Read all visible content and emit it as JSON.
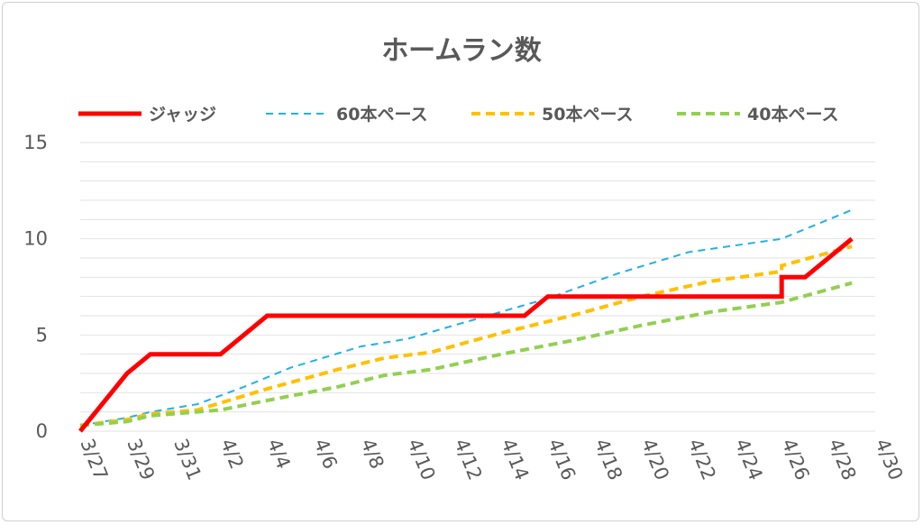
{
  "chart_data": {
    "type": "line",
    "title": "ホームラン数",
    "xlabel": "",
    "ylabel": "",
    "ylim": [
      0,
      15
    ],
    "yticks": [
      "0",
      "5",
      "10",
      "15"
    ],
    "grid": true,
    "legend_position": "top",
    "xticks": [
      "3/27",
      "3/29",
      "3/31",
      "4/2",
      "4/4",
      "4/6",
      "4/8",
      "4/10",
      "4/12",
      "4/14",
      "4/16",
      "4/18",
      "4/20",
      "4/22",
      "4/24",
      "4/26",
      "4/28",
      "4/30"
    ],
    "x_day_start": "3/27",
    "series": [
      {
        "name": "ジャッジ",
        "color": "#ff0000",
        "style": "solid-thick",
        "points": [
          [
            0,
            0
          ],
          [
            2,
            3
          ],
          [
            3,
            4
          ],
          [
            6,
            4
          ],
          [
            8,
            6
          ],
          [
            19,
            6
          ],
          [
            20,
            7
          ],
          [
            30,
            7
          ],
          [
            30,
            8
          ],
          [
            31,
            8
          ],
          [
            33,
            10
          ]
        ]
      },
      {
        "name": "60本ペース",
        "color": "#1fb2e5",
        "style": "dashed-thin",
        "points": [
          [
            0,
            0.3
          ],
          [
            2,
            0.7
          ],
          [
            3,
            1.0
          ],
          [
            5,
            1.4
          ],
          [
            7,
            2.3
          ],
          [
            9,
            3.3
          ],
          [
            12,
            4.4
          ],
          [
            14,
            4.8
          ],
          [
            18,
            6.2
          ],
          [
            20,
            6.9
          ],
          [
            23,
            8.2
          ],
          [
            26,
            9.3
          ],
          [
            30,
            10.0
          ],
          [
            33,
            11.5
          ]
        ]
      },
      {
        "name": "50本ペース",
        "color": "#ffc000",
        "style": "dashed-thick",
        "points": [
          [
            0,
            0.3
          ],
          [
            2,
            0.6
          ],
          [
            3,
            0.9
          ],
          [
            5,
            1.1
          ],
          [
            8,
            2.2
          ],
          [
            11,
            3.2
          ],
          [
            13,
            3.8
          ],
          [
            15,
            4.1
          ],
          [
            18,
            5.1
          ],
          [
            21,
            6.0
          ],
          [
            24,
            7.0
          ],
          [
            27,
            7.8
          ],
          [
            30,
            8.3
          ],
          [
            30,
            8.6
          ],
          [
            33,
            9.6
          ]
        ]
      },
      {
        "name": "40本ペース",
        "color": "#92d050",
        "style": "dashed-thick",
        "points": [
          [
            0,
            0.3
          ],
          [
            2,
            0.5
          ],
          [
            3,
            0.8
          ],
          [
            6,
            1.1
          ],
          [
            8,
            1.6
          ],
          [
            11,
            2.3
          ],
          [
            13,
            2.9
          ],
          [
            15,
            3.2
          ],
          [
            18,
            4.0
          ],
          [
            21,
            4.7
          ],
          [
            24,
            5.5
          ],
          [
            27,
            6.2
          ],
          [
            30,
            6.7
          ],
          [
            33,
            7.7
          ]
        ]
      }
    ]
  }
}
